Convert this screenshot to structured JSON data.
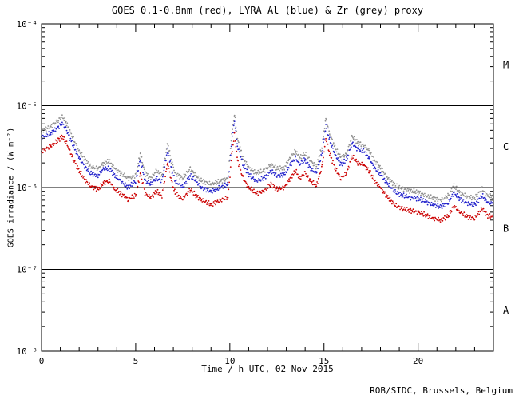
{
  "header": {
    "title": "GOES 0.1-0.8nm (red), LYRA Al (blue) & Zr (grey) proxy"
  },
  "axes": {
    "xlabel": "Time / h UTC, 02 Nov 2015",
    "ylabel": "GOES irradiance / (W m⁻²)"
  },
  "footer": {
    "credit": "ROB/SIDC, Brussels, Belgium"
  },
  "colors": {
    "frame": "#000000",
    "background": "#ffffff",
    "red_series": "#cc0000",
    "blue_series": "#2222cc",
    "grey_series": "#909090"
  },
  "chart_data": {
    "type": "scatter",
    "title": "GOES 0.1-0.8nm (red), LYRA Al (blue) & Zr (grey) proxy",
    "xlabel": "Time / h UTC, 02 Nov 2015",
    "ylabel": "GOES irradiance / (W m⁻²)",
    "xlim": [
      0,
      24
    ],
    "ylim": [
      1e-08,
      0.0001
    ],
    "yscale": "log",
    "grid": false,
    "legend": "encoded in title",
    "xticks_major": [
      0,
      5,
      10,
      15,
      20
    ],
    "xtick_labels": [
      "0",
      "5",
      "10",
      "15",
      "20"
    ],
    "xtick_minor_step": 1,
    "ytick_values": [
      0.0001,
      1e-05,
      1e-06,
      1e-07,
      1e-08
    ],
    "ytick_labels": [
      "10⁻⁴",
      "10⁻⁵",
      "10⁻⁶",
      "10⁻⁷",
      "10⁻⁸"
    ],
    "hlines": [
      1e-05,
      1e-06,
      1e-07
    ],
    "flare_classes": [
      {
        "label": "M",
        "range": [
          1e-05,
          0.0001
        ]
      },
      {
        "label": "C",
        "range": [
          1e-06,
          1e-05
        ]
      },
      {
        "label": "B",
        "range": [
          1e-07,
          1e-06
        ]
      },
      {
        "label": "A",
        "range": [
          1e-08,
          1e-07
        ]
      }
    ],
    "x": [
      0,
      0.5,
      0.9,
      1.1,
      1.3,
      1.7,
      2.0,
      2.3,
      2.6,
      3.0,
      3.3,
      3.6,
      3.9,
      4.2,
      4.6,
      5.0,
      5.25,
      5.5,
      5.8,
      6.1,
      6.4,
      6.7,
      6.9,
      7.1,
      7.5,
      7.9,
      8.2,
      8.5,
      9.0,
      9.5,
      9.9,
      10.1,
      10.25,
      10.4,
      10.7,
      11.0,
      11.4,
      11.8,
      12.2,
      12.5,
      12.9,
      13.2,
      13.5,
      13.7,
      14.0,
      14.3,
      14.6,
      14.9,
      15.1,
      15.3,
      15.6,
      15.9,
      16.2,
      16.5,
      16.8,
      17.1,
      17.4,
      17.7,
      18.0,
      18.4,
      18.8,
      19.2,
      19.6,
      20.0,
      20.4,
      20.8,
      21.2,
      21.6,
      21.9,
      22.2,
      22.6,
      23.0,
      23.4,
      23.7,
      24.0
    ],
    "series": [
      {
        "name": "LYRA Zr proxy",
        "color": "#909090",
        "values": [
          4.9e-06,
          5.6e-06,
          6.7e-06,
          7.4e-06,
          6.3e-06,
          3.9e-06,
          2.8e-06,
          2.2e-06,
          1.8e-06,
          1.7e-06,
          2e-06,
          2.1e-06,
          1.7e-06,
          1.5e-06,
          1.3e-06,
          1.4e-06,
          2.6e-06,
          1.5e-06,
          1.3e-06,
          1.6e-06,
          1.4e-06,
          3.5e-06,
          2.1e-06,
          1.5e-06,
          1.3e-06,
          1.7e-06,
          1.4e-06,
          1.2e-06,
          1.1e-06,
          1.2e-06,
          1.3e-06,
          4.4e-06,
          7.9e-06,
          3.9e-06,
          2.3e-06,
          1.75e-06,
          1.5e-06,
          1.6e-06,
          1.9e-06,
          1.7e-06,
          1.75e-06,
          2.3e-06,
          2.8e-06,
          2.3e-06,
          2.6e-06,
          2.1e-06,
          1.8e-06,
          3.2e-06,
          7e-06,
          4.6e-06,
          3e-06,
          2.3e-06,
          2.6e-06,
          4.2e-06,
          3.5e-06,
          3.3e-06,
          2.8e-06,
          2.1e-06,
          1.75e-06,
          1.3e-06,
          1.05e-06,
          9.6e-07,
          9.1e-07,
          8.8e-07,
          8e-07,
          7.4e-07,
          7e-07,
          7.9e-07,
          1.05e-06,
          8.8e-07,
          7.7e-07,
          7.4e-07,
          9.6e-07,
          7.9e-07,
          7.7e-07
        ]
      },
      {
        "name": "LYRA Al proxy",
        "color": "#2222cc",
        "values": [
          4.1e-06,
          4.6e-06,
          5.5e-06,
          6.1e-06,
          5.2e-06,
          3.2e-06,
          2.3e-06,
          1.8e-06,
          1.5e-06,
          1.4e-06,
          1.7e-06,
          1.7e-06,
          1.4e-06,
          1.2e-06,
          1e-06,
          1.2e-06,
          2.2e-06,
          1.2e-06,
          1.1e-06,
          1.3e-06,
          1.2e-06,
          2.9e-06,
          1.7e-06,
          1.2e-06,
          1e-06,
          1.4e-06,
          1.2e-06,
          1e-06,
          9e-07,
          1e-06,
          1.1e-06,
          3.6e-06,
          6.5e-06,
          3.2e-06,
          1.9e-06,
          1.45e-06,
          1.2e-06,
          1.3e-06,
          1.6e-06,
          1.4e-06,
          1.45e-06,
          1.9e-06,
          2.3e-06,
          1.9e-06,
          2.2e-06,
          1.7e-06,
          1.5e-06,
          2.6e-06,
          5.8e-06,
          3.8e-06,
          2.5e-06,
          1.9e-06,
          2.2e-06,
          3.5e-06,
          2.9e-06,
          2.8e-06,
          2.3e-06,
          1.7e-06,
          1.45e-06,
          1.1e-06,
          8.7e-07,
          8e-07,
          7.5e-07,
          7.3e-07,
          6.7e-07,
          6.1e-07,
          5.8e-07,
          6.5e-07,
          8.7e-07,
          7.3e-07,
          6.4e-07,
          6.1e-07,
          8e-07,
          6.5e-07,
          6.4e-07
        ]
      },
      {
        "name": "GOES 0.1-0.8nm",
        "color": "#cc0000",
        "values": [
          2.8e-06,
          3.2e-06,
          3.8e-06,
          4.2e-06,
          3.6e-06,
          2.2e-06,
          1.6e-06,
          1.25e-06,
          1.05e-06,
          9.5e-07,
          1.15e-06,
          1.2e-06,
          9.5e-07,
          8.5e-07,
          7.2e-07,
          8e-07,
          1.5e-06,
          8.5e-07,
          7.5e-07,
          9e-07,
          8e-07,
          2e-06,
          1.2e-06,
          8.5e-07,
          7.2e-07,
          9.5e-07,
          8e-07,
          7e-07,
          6.2e-07,
          7e-07,
          7.5e-07,
          2.5e-06,
          4.5e-06,
          2.2e-06,
          1.3e-06,
          1e-06,
          8.5e-07,
          9e-07,
          1.1e-06,
          9.5e-07,
          1e-06,
          1.3e-06,
          1.6e-06,
          1.3e-06,
          1.5e-06,
          1.2e-06,
          1.05e-06,
          1.8e-06,
          4e-06,
          2.6e-06,
          1.7e-06,
          1.3e-06,
          1.5e-06,
          2.4e-06,
          2e-06,
          1.9e-06,
          1.6e-06,
          1.2e-06,
          1e-06,
          7.5e-07,
          6e-07,
          5.5e-07,
          5.2e-07,
          5e-07,
          4.6e-07,
          4.2e-07,
          4e-07,
          4.5e-07,
          6e-07,
          5e-07,
          4.4e-07,
          4.2e-07,
          5.5e-07,
          4.5e-07,
          4.4e-07
        ]
      }
    ]
  }
}
